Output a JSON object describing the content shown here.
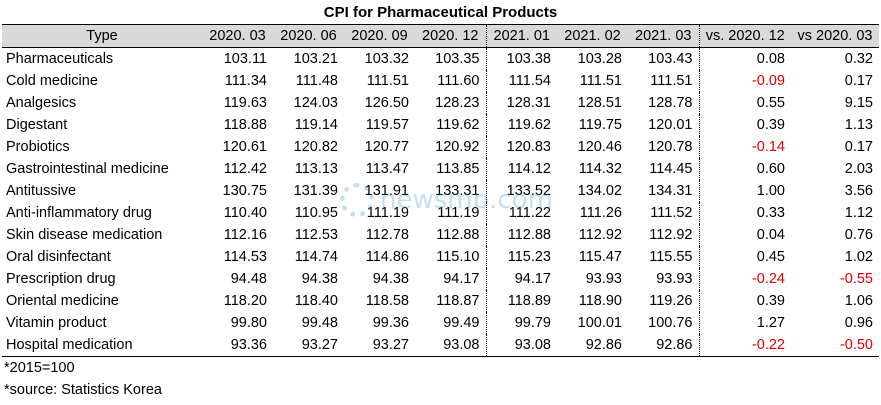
{
  "title": "CPI for Pharmaceutical Products",
  "columns": [
    "Type",
    "2020. 03",
    "2020. 06",
    "2020. 09",
    "2020. 12",
    "2021. 01",
    "2021. 02",
    "2021. 03",
    "vs. 2020. 12",
    "vs 2020. 03"
  ],
  "rows": [
    {
      "type": "Pharmaceuticals",
      "values": [
        "103.11",
        "103.21",
        "103.32",
        "103.35",
        "103.38",
        "103.28",
        "103.43",
        "0.08",
        "0.32"
      ]
    },
    {
      "type": "Cold medicine",
      "values": [
        "111.34",
        "111.48",
        "111.51",
        "111.60",
        "111.54",
        "111.51",
        "111.51",
        "-0.09",
        "0.17"
      ]
    },
    {
      "type": "Analgesics",
      "values": [
        "119.63",
        "124.03",
        "126.50",
        "128.23",
        "128.31",
        "128.51",
        "128.78",
        "0.55",
        "9.15"
      ]
    },
    {
      "type": "Digestant",
      "values": [
        "118.88",
        "119.14",
        "119.57",
        "119.62",
        "119.62",
        "119.75",
        "120.01",
        "0.39",
        "1.13"
      ]
    },
    {
      "type": "Probiotics",
      "values": [
        "120.61",
        "120.82",
        "120.77",
        "120.92",
        "120.83",
        "120.46",
        "120.78",
        "-0.14",
        "0.17"
      ]
    },
    {
      "type": "Gastrointestinal medicine",
      "values": [
        "112.42",
        "113.13",
        "113.47",
        "113.85",
        "114.12",
        "114.32",
        "114.45",
        "0.60",
        "2.03"
      ]
    },
    {
      "type": "Antitussive",
      "values": [
        "130.75",
        "131.39",
        "131.91",
        "133.31",
        "133.52",
        "134.02",
        "134.31",
        "1.00",
        "3.56"
      ]
    },
    {
      "type": "Anti-inflammatory drug",
      "values": [
        "110.40",
        "110.95",
        "111.19",
        "111.19",
        "111.22",
        "111.26",
        "111.52",
        "0.33",
        "1.12"
      ]
    },
    {
      "type": "Skin disease medication",
      "values": [
        "112.16",
        "112.53",
        "112.78",
        "112.88",
        "112.88",
        "112.92",
        "112.92",
        "0.04",
        "0.76"
      ]
    },
    {
      "type": "Oral disinfectant",
      "values": [
        "114.53",
        "114.74",
        "114.86",
        "115.10",
        "115.23",
        "115.47",
        "115.55",
        "0.45",
        "1.02"
      ]
    },
    {
      "type": "Prescription drug",
      "values": [
        "94.48",
        "94.38",
        "94.38",
        "94.17",
        "94.17",
        "93.93",
        "93.93",
        "-0.24",
        "-0.55"
      ]
    },
    {
      "type": "Oriental medicine",
      "values": [
        "118.20",
        "118.40",
        "118.58",
        "118.87",
        "118.89",
        "118.90",
        "119.26",
        "0.39",
        "1.06"
      ]
    },
    {
      "type": "Vitamin product",
      "values": [
        "99.80",
        "99.48",
        "99.36",
        "99.49",
        "99.79",
        "100.01",
        "100.76",
        "1.27",
        "0.96"
      ]
    },
    {
      "type": "Hospital medication",
      "values": [
        "93.36",
        "93.27",
        "93.27",
        "93.08",
        "93.08",
        "92.86",
        "92.86",
        "-0.22",
        "-0.50"
      ]
    }
  ],
  "notes": {
    "base": "*2015=100",
    "source": "*source: Statistics Korea"
  },
  "watermark": "newsmp.com",
  "colors": {
    "header_bg": "#d9d9d9",
    "negative": "#e00000",
    "watermark": "#2a8fd8"
  }
}
